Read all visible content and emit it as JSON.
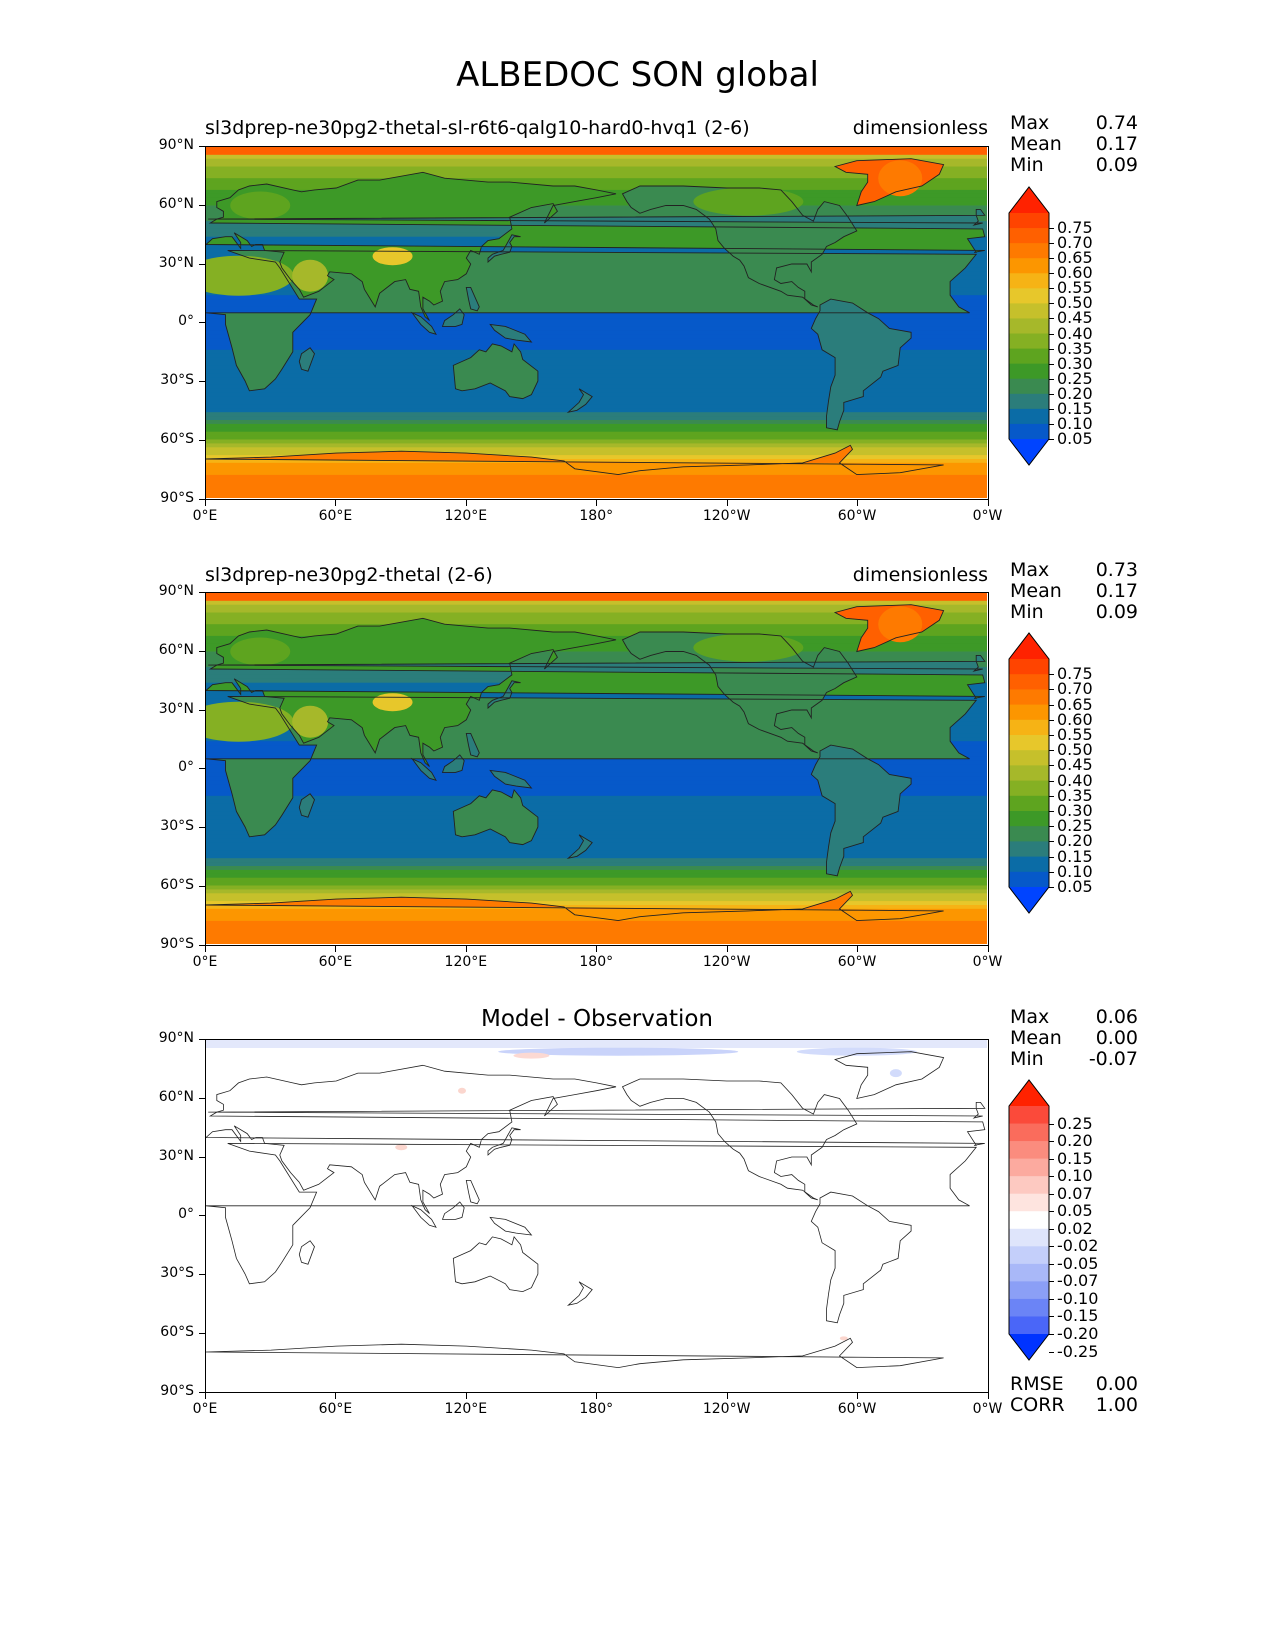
{
  "title": "ALBEDOC SON global",
  "lat_ticks": [
    "90°N",
    "60°N",
    "30°N",
    "0°",
    "30°S",
    "60°S",
    "90°S"
  ],
  "lon_ticks": [
    "0°E",
    "60°E",
    "120°E",
    "180°",
    "120°W",
    "60°W",
    "0°W"
  ],
  "panels": [
    {
      "name": "test",
      "left_title": "sl3dprep-ne30pg2-thetal-sl-r6t6-qalg10-hard0-hvq1 (2-6)",
      "right_title": "dimensionless",
      "stats": [
        {
          "label": "Max",
          "value": "0.74"
        },
        {
          "label": "Mean",
          "value": "0.17"
        },
        {
          "label": "Min",
          "value": "0.09"
        }
      ],
      "colorbar": {
        "labels": [
          "0.75",
          "0.70",
          "0.65",
          "0.60",
          "0.55",
          "0.50",
          "0.45",
          "0.40",
          "0.35",
          "0.30",
          "0.25",
          "0.20",
          "0.15",
          "0.10",
          "0.05"
        ],
        "colors": [
          "#ff2200",
          "#ff4400",
          "#ff6000",
          "#fe7a00",
          "#fc9600",
          "#f6b315",
          "#e7c72b",
          "#c6c02b",
          "#a6b82a",
          "#85b023",
          "#5ea41f",
          "#3d9927",
          "#3a8a50",
          "#2b7d7b",
          "#0b6ca6",
          "#0659c9",
          "#0044ff"
        ]
      },
      "chart_data": {
        "type": "heatmap",
        "variable": "ALBEDOC",
        "season": "SON",
        "units": "dimensionless",
        "max": 0.74,
        "mean": 0.17,
        "min": 0.09,
        "levels": [
          0.05,
          0.1,
          0.15,
          0.2,
          0.25,
          0.3,
          0.35,
          0.4,
          0.45,
          0.5,
          0.55,
          0.6,
          0.65,
          0.7,
          0.75
        ],
        "xlim": [
          0,
          360
        ],
        "ylim": [
          -90,
          90
        ],
        "zonal_profile": [
          {
            "lat": 85,
            "value": 0.45
          },
          {
            "lat": 75,
            "value": 0.35
          },
          {
            "lat": 60,
            "value": 0.25
          },
          {
            "lat": 45,
            "value": 0.15
          },
          {
            "lat": 30,
            "value": 0.13
          },
          {
            "lat": 15,
            "value": 0.1
          },
          {
            "lat": 0,
            "value": 0.09
          },
          {
            "lat": -15,
            "value": 0.1
          },
          {
            "lat": -30,
            "value": 0.12
          },
          {
            "lat": -45,
            "value": 0.14
          },
          {
            "lat": -60,
            "value": 0.35
          },
          {
            "lat": -75,
            "value": 0.65
          },
          {
            "lat": -90,
            "value": 0.7
          }
        ]
      }
    },
    {
      "name": "reference",
      "left_title": "sl3dprep-ne30pg2-thetal (2-6)",
      "right_title": "dimensionless",
      "stats": [
        {
          "label": "Max",
          "value": "0.73"
        },
        {
          "label": "Mean",
          "value": "0.17"
        },
        {
          "label": "Min",
          "value": "0.09"
        }
      ],
      "colorbar": {
        "labels": [
          "0.75",
          "0.70",
          "0.65",
          "0.60",
          "0.55",
          "0.50",
          "0.45",
          "0.40",
          "0.35",
          "0.30",
          "0.25",
          "0.20",
          "0.15",
          "0.10",
          "0.05"
        ],
        "colors": [
          "#ff2200",
          "#ff4400",
          "#ff6000",
          "#fe7a00",
          "#fc9600",
          "#f6b315",
          "#e7c72b",
          "#c6c02b",
          "#a6b82a",
          "#85b023",
          "#5ea41f",
          "#3d9927",
          "#3a8a50",
          "#2b7d7b",
          "#0b6ca6",
          "#0659c9",
          "#0044ff"
        ]
      },
      "chart_data": {
        "type": "heatmap",
        "variable": "ALBEDOC",
        "season": "SON",
        "units": "dimensionless",
        "max": 0.73,
        "mean": 0.17,
        "min": 0.09,
        "levels": [
          0.05,
          0.1,
          0.15,
          0.2,
          0.25,
          0.3,
          0.35,
          0.4,
          0.45,
          0.5,
          0.55,
          0.6,
          0.65,
          0.7,
          0.75
        ],
        "xlim": [
          0,
          360
        ],
        "ylim": [
          -90,
          90
        ],
        "zonal_profile": [
          {
            "lat": 85,
            "value": 0.45
          },
          {
            "lat": 75,
            "value": 0.35
          },
          {
            "lat": 60,
            "value": 0.25
          },
          {
            "lat": 45,
            "value": 0.15
          },
          {
            "lat": 30,
            "value": 0.13
          },
          {
            "lat": 15,
            "value": 0.1
          },
          {
            "lat": 0,
            "value": 0.09
          },
          {
            "lat": -15,
            "value": 0.1
          },
          {
            "lat": -30,
            "value": 0.12
          },
          {
            "lat": -45,
            "value": 0.14
          },
          {
            "lat": -60,
            "value": 0.35
          },
          {
            "lat": -75,
            "value": 0.65
          },
          {
            "lat": -90,
            "value": 0.7
          }
        ]
      }
    },
    {
      "name": "difference",
      "center_title": "Model - Observation",
      "stats": [
        {
          "label": "Max",
          "value": "0.06"
        },
        {
          "label": "Mean",
          "value": "0.00"
        },
        {
          "label": "Min",
          "value": "-0.07"
        }
      ],
      "extra_stats": [
        {
          "label": "RMSE",
          "value": "0.00"
        },
        {
          "label": "CORR",
          "value": "1.00"
        }
      ],
      "colorbar": {
        "labels": [
          "0.25",
          "0.20",
          "0.15",
          "0.10",
          "0.07",
          "0.05",
          "0.02",
          "-0.02",
          "-0.05",
          "-0.07",
          "-0.10",
          "-0.15",
          "-0.20",
          "-0.25"
        ],
        "colors": [
          "#ff2200",
          "#fb4a3a",
          "#fa6c5c",
          "#fb8c7e",
          "#fcaa9f",
          "#fdc9c1",
          "#fee4df",
          "#ffffff",
          "#dfe5fb",
          "#c4cffa",
          "#a9b8f8",
          "#8b9ff6",
          "#6b84f6",
          "#4a66f8",
          "#0033ff"
        ]
      },
      "chart_data": {
        "type": "heatmap",
        "variable": "ALBEDOC difference",
        "max": 0.06,
        "mean": 0.0,
        "min": -0.07,
        "rmse": 0.0,
        "corr": 1.0,
        "levels": [
          -0.25,
          -0.2,
          -0.15,
          -0.1,
          -0.07,
          -0.05,
          -0.02,
          0.02,
          0.05,
          0.07,
          0.1,
          0.15,
          0.2,
          0.25
        ],
        "xlim": [
          0,
          360
        ],
        "ylim": [
          -90,
          90
        ]
      }
    }
  ]
}
